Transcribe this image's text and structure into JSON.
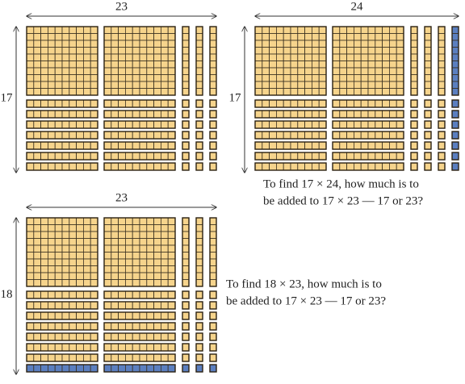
{
  "panels": [
    {
      "width": 23,
      "height": 17
    },
    {
      "width": 24,
      "height": 17,
      "highlight": "last-column",
      "question": [
        "To find 17 × 24, how much is to",
        "be added to 17 × 23 — 17 or 23?"
      ]
    },
    {
      "width": 23,
      "height": 18,
      "highlight": "last-row",
      "question": [
        "To find 18 × 23, how much is to",
        "be added to 17 × 23 — 17 or 23?"
      ]
    }
  ]
}
